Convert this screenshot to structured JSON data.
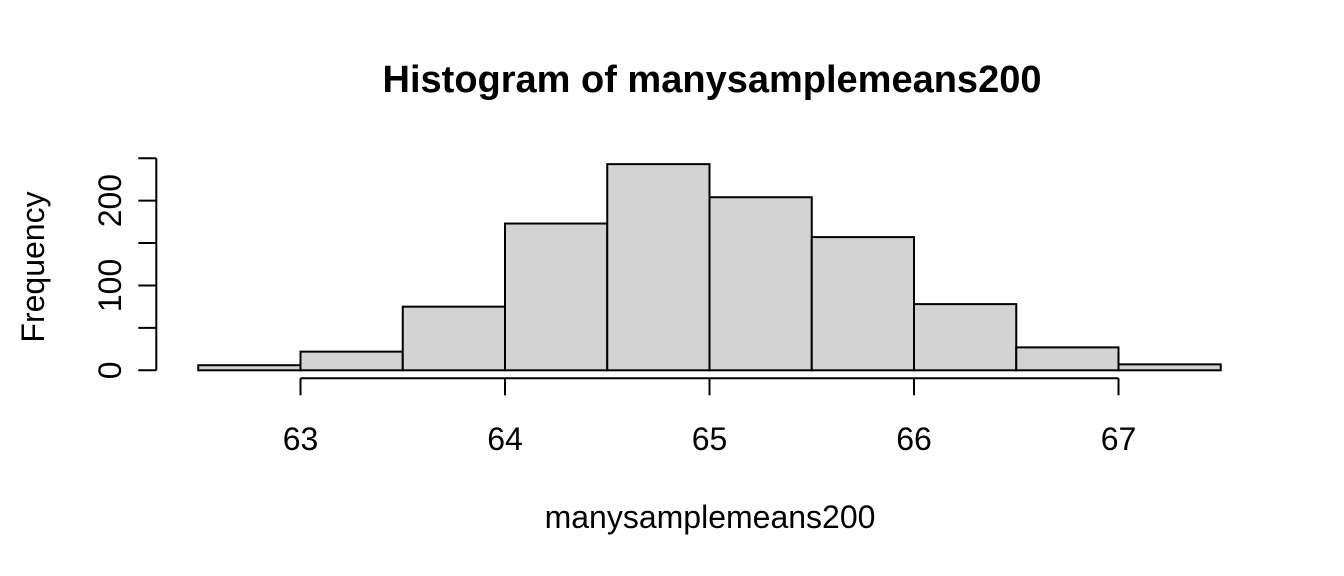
{
  "chart_data": {
    "type": "bar",
    "subtype": "histogram",
    "title": "Histogram of manysamplemeans200",
    "xlabel": "manysamplemeans200",
    "ylabel": "Frequency",
    "bin_edges": [
      62.5,
      63.0,
      63.5,
      64.0,
      64.5,
      65.0,
      65.5,
      66.0,
      66.5,
      67.0,
      67.5
    ],
    "frequencies": [
      6,
      22,
      75,
      173,
      243,
      204,
      157,
      78,
      27,
      7
    ],
    "x_ticks": [
      {
        "value": 63,
        "label": "63"
      },
      {
        "value": 64,
        "label": "64"
      },
      {
        "value": 65,
        "label": "65"
      },
      {
        "value": 66,
        "label": "66"
      },
      {
        "value": 67,
        "label": "67"
      }
    ],
    "y_ticks": [
      {
        "value": 0,
        "label": "0"
      },
      {
        "value": 50,
        "label": ""
      },
      {
        "value": 100,
        "label": "100"
      },
      {
        "value": 150,
        "label": ""
      },
      {
        "value": 200,
        "label": "200"
      },
      {
        "value": 250,
        "label": ""
      }
    ],
    "xlim": [
      62.5,
      67.5
    ],
    "ylim": [
      0,
      250
    ],
    "grid": false,
    "legend": "none",
    "colors": {
      "bar_fill": "#d3d3d3",
      "bar_stroke": "#000000",
      "axis": "#000000",
      "text": "#000000",
      "background": "#ffffff"
    }
  }
}
